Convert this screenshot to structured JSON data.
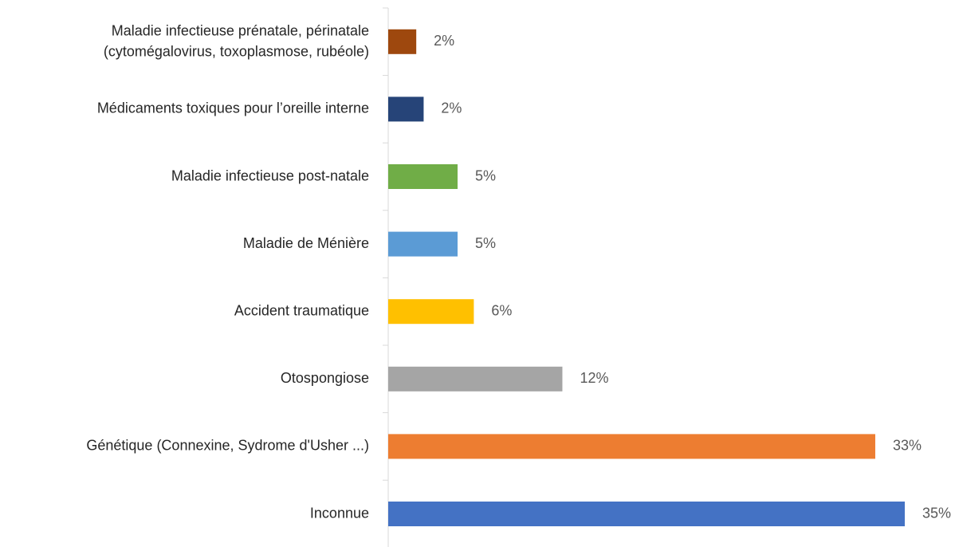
{
  "chart_data": {
    "type": "bar",
    "orientation": "horizontal",
    "categories": [
      [
        "Maladie infectieuse prénatale, périnatale",
        "(cytomégalovirus, toxoplasmose, rubéole)"
      ],
      "Médicaments toxiques pour l’oreille interne",
      "Maladie infectieuse post-natale",
      "Maladie de Ménière",
      "Accident traumatique",
      "Otospongiose",
      "Génétique (Connexine, Sydrome d'Usher ...)",
      "Inconnue"
    ],
    "values": [
      1.9,
      2.4,
      4.7,
      4.7,
      5.8,
      11.8,
      33,
      35
    ],
    "value_labels": [
      "2%",
      "2%",
      "5%",
      "5%",
      "6%",
      "12%",
      "33%",
      "35%"
    ],
    "colors": [
      "#9e480e",
      "#264478",
      "#70ad47",
      "#5b9bd5",
      "#ffc000",
      "#a5a5a5",
      "#ed7d31",
      "#4472c4"
    ]
  }
}
